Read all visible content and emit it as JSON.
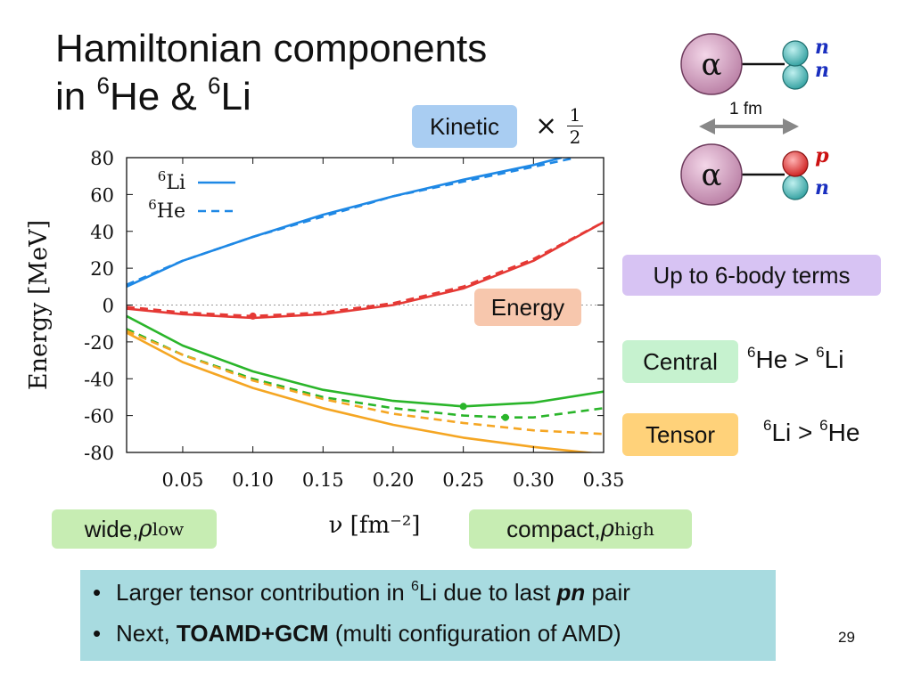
{
  "title": {
    "line1": "Hamiltonian components",
    "line2_prefix": "in ",
    "sup1": "6",
    "mid": "He & ",
    "sup2": "6",
    "suffix": "Li"
  },
  "labels": {
    "kinetic": "Kinetic",
    "times_half": "×",
    "half_num": "1",
    "half_den": "2",
    "energy": "Energy",
    "up_to": "Up to 6-body terms",
    "central": "Central",
    "tensor": "Tensor",
    "wide": "wide, ",
    "wide_sym": "ρ",
    "wide_sub": "low",
    "compact": "compact, ",
    "compact_sym": "ρ",
    "compact_sub": "high"
  },
  "comparisons": {
    "central": {
      "sup_a": "6",
      "a": "He > ",
      "sup_b": "6",
      "b": "Li"
    },
    "tensor": {
      "sup_a": "6",
      "a": "Li > ",
      "sup_b": "6",
      "b": "He"
    }
  },
  "diagram": {
    "alpha": "α",
    "top_n1": "n",
    "top_n2": "n",
    "bot_p": "p",
    "bot_n": "n",
    "distance": "1 fm"
  },
  "bullets": [
    {
      "text_a": "Larger tensor contribution in ",
      "sup": "6",
      "text_b": "Li due to last ",
      "bold": "pn",
      "text_c": " pair"
    },
    {
      "text_a": "Next, ",
      "bold": "TOAMD+GCM",
      "text_c": " (multi configuration of AMD)"
    }
  ],
  "page_number": "29",
  "colors": {
    "kinetic": "#1e88e5",
    "energy": "#e53935",
    "central": "#2ab52a",
    "tensor": "#f5a623",
    "alpha": "#d9a6c7",
    "neutron": "#4fc3c3",
    "proton": "#ee3333"
  },
  "chart_data": {
    "type": "line",
    "xlabel": "ν [fm⁻²]",
    "ylabel": "Energy [MeV]",
    "xlim": [
      0.01,
      0.35
    ],
    "ylim": [
      -80,
      80
    ],
    "xticks": [
      "0.05",
      "0.10",
      "0.15",
      "0.20",
      "0.25",
      "0.30",
      "0.35"
    ],
    "yticks": [
      "80",
      "60",
      "40",
      "20",
      "0",
      "-20",
      "-40",
      "-60",
      "-80"
    ],
    "legend": {
      "placement": "top-left",
      "entries": [
        {
          "sup": "6",
          "name": "Li",
          "style": "solid"
        },
        {
          "sup": "6",
          "name": "He",
          "style": "dashed"
        }
      ]
    },
    "zero_line": true,
    "series": [
      {
        "group": "kinetic",
        "style": "solid",
        "x": [
          0.01,
          0.05,
          0.1,
          0.15,
          0.2,
          0.25,
          0.3,
          0.32
        ],
        "y": [
          10,
          24,
          37,
          49,
          59,
          68,
          76,
          80
        ]
      },
      {
        "group": "kinetic",
        "style": "dashed",
        "x": [
          0.01,
          0.05,
          0.1,
          0.15,
          0.2,
          0.25,
          0.3,
          0.33
        ],
        "y": [
          11,
          24,
          37,
          48,
          59,
          67,
          75,
          80
        ]
      },
      {
        "group": "energy",
        "style": "solid",
        "x": [
          0.01,
          0.05,
          0.1,
          0.15,
          0.2,
          0.25,
          0.3,
          0.35
        ],
        "y": [
          -2,
          -5,
          -7,
          -5,
          0,
          9,
          24,
          45
        ]
      },
      {
        "group": "energy",
        "style": "dashed",
        "x": [
          0.01,
          0.05,
          0.1,
          0.15,
          0.2,
          0.25,
          0.3,
          0.35
        ],
        "y": [
          -1,
          -4,
          -6,
          -4,
          1,
          10,
          25,
          45
        ]
      },
      {
        "group": "central",
        "style": "solid",
        "x": [
          0.01,
          0.05,
          0.1,
          0.15,
          0.2,
          0.25,
          0.3,
          0.35
        ],
        "y": [
          -6,
          -22,
          -36,
          -46,
          -52,
          -55,
          -53,
          -47
        ]
      },
      {
        "group": "central",
        "style": "dashed",
        "x": [
          0.01,
          0.05,
          0.1,
          0.15,
          0.2,
          0.25,
          0.28,
          0.3,
          0.35
        ],
        "y": [
          -13,
          -27,
          -40,
          -50,
          -56,
          -60,
          -61,
          -61,
          -56
        ]
      },
      {
        "group": "tensor",
        "style": "solid",
        "x": [
          0.01,
          0.05,
          0.1,
          0.15,
          0.2,
          0.25,
          0.3,
          0.35
        ],
        "y": [
          -15,
          -31,
          -45,
          -56,
          -65,
          -72,
          -77,
          -81
        ]
      },
      {
        "group": "tensor",
        "style": "dashed",
        "x": [
          0.01,
          0.05,
          0.1,
          0.15,
          0.2,
          0.25,
          0.3,
          0.35
        ],
        "y": [
          -14,
          -27,
          -41,
          -51,
          -59,
          -64,
          -68,
          -70
        ]
      }
    ],
    "markers": [
      {
        "group": "energy",
        "x": 0.1,
        "y": -6
      },
      {
        "group": "central",
        "x": 0.25,
        "y": -55
      },
      {
        "group": "central",
        "x": 0.28,
        "y": -61
      }
    ]
  }
}
